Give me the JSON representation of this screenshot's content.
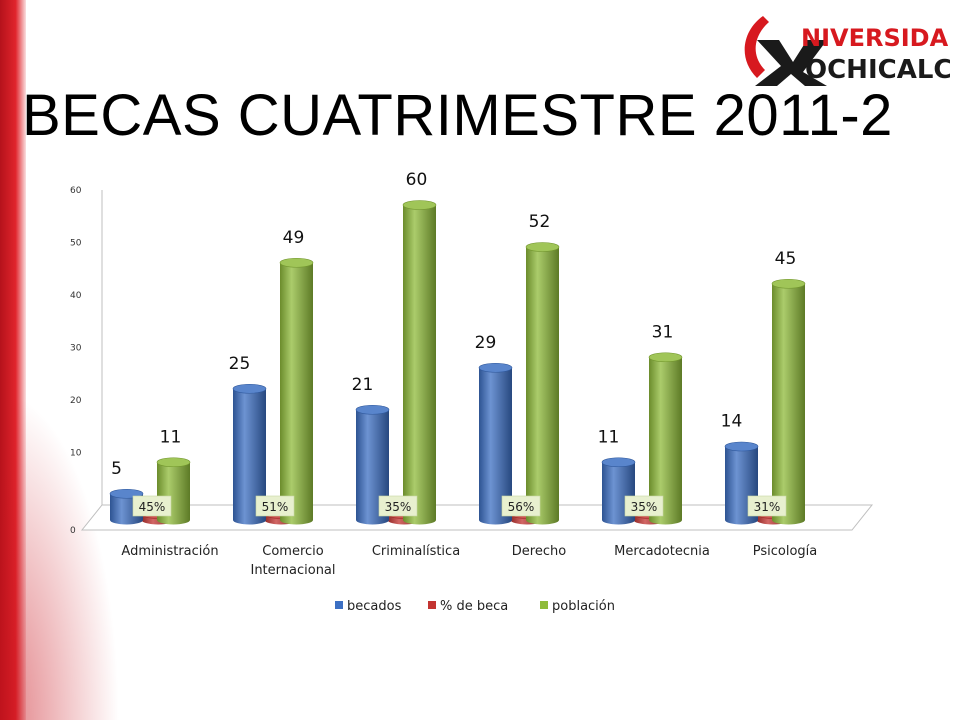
{
  "title": "BECAS CUATRIMESTRE 2011-2",
  "logo": {
    "line1": "NIVERSIDAD",
    "line2": "OCHICALCO",
    "colors": {
      "red": "#d7191f",
      "black": "#1a1a1a"
    }
  },
  "chart_data": {
    "type": "bar",
    "style": "3d-cylinder",
    "categories": [
      [
        "Administración"
      ],
      [
        "Comercio",
        "Internacional"
      ],
      [
        "Criminalística"
      ],
      [
        "Derecho"
      ],
      [
        "Mercadotecnia"
      ],
      [
        "Psicología"
      ]
    ],
    "series": [
      {
        "name": "becados",
        "color": "#3c6fc3",
        "values": [
          5,
          25,
          21,
          29,
          11,
          14
        ],
        "labels": [
          "5",
          "25",
          "21",
          "29",
          "11",
          "14"
        ]
      },
      {
        "name": "% de beca",
        "color": "#c33431",
        "values": [
          0.45,
          0.51,
          0.35,
          0.56,
          0.35,
          0.31
        ],
        "labels": [
          "45%",
          "51%",
          "35%",
          "56%",
          "35%",
          "31%"
        ]
      },
      {
        "name": "población",
        "color": "#8fbb3a",
        "values": [
          11,
          49,
          60,
          52,
          31,
          45
        ],
        "labels": [
          "11",
          "49",
          "60",
          "52",
          "31",
          "45"
        ]
      }
    ],
    "ylim": [
      0,
      60
    ],
    "yticks": [
      "0",
      "10",
      "20",
      "30",
      "40",
      "50",
      "60"
    ],
    "legend_position": "bottom",
    "grid": false
  }
}
